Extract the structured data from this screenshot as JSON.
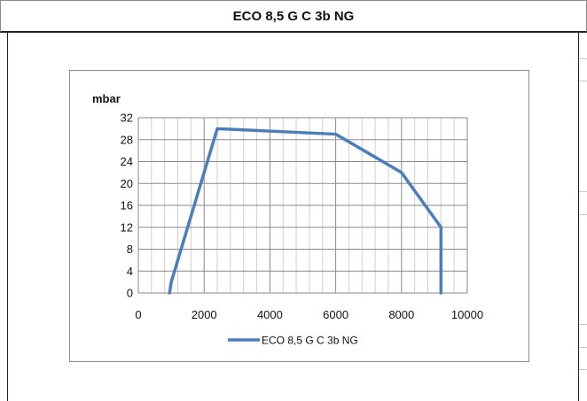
{
  "title": "ECO 8,5 G C 3b NG",
  "chart_data": {
    "type": "line",
    "title": "",
    "ylabel": "mbar",
    "xlabel": "",
    "xlim": [
      0,
      10000
    ],
    "ylim": [
      0,
      32
    ],
    "x_ticks": [
      0,
      2000,
      4000,
      6000,
      8000,
      10000
    ],
    "y_ticks": [
      0,
      4,
      8,
      12,
      16,
      20,
      24,
      28,
      32
    ],
    "grid": true,
    "legend_position": "bottom",
    "series": [
      {
        "name": "ECO 8,5 G C 3b NG",
        "color": "#4a7ebb",
        "x": [
          950,
          1000,
          2400,
          6000,
          8000,
          9200,
          9200
        ],
        "y": [
          0,
          2,
          30,
          29,
          22,
          12,
          0
        ]
      }
    ]
  }
}
